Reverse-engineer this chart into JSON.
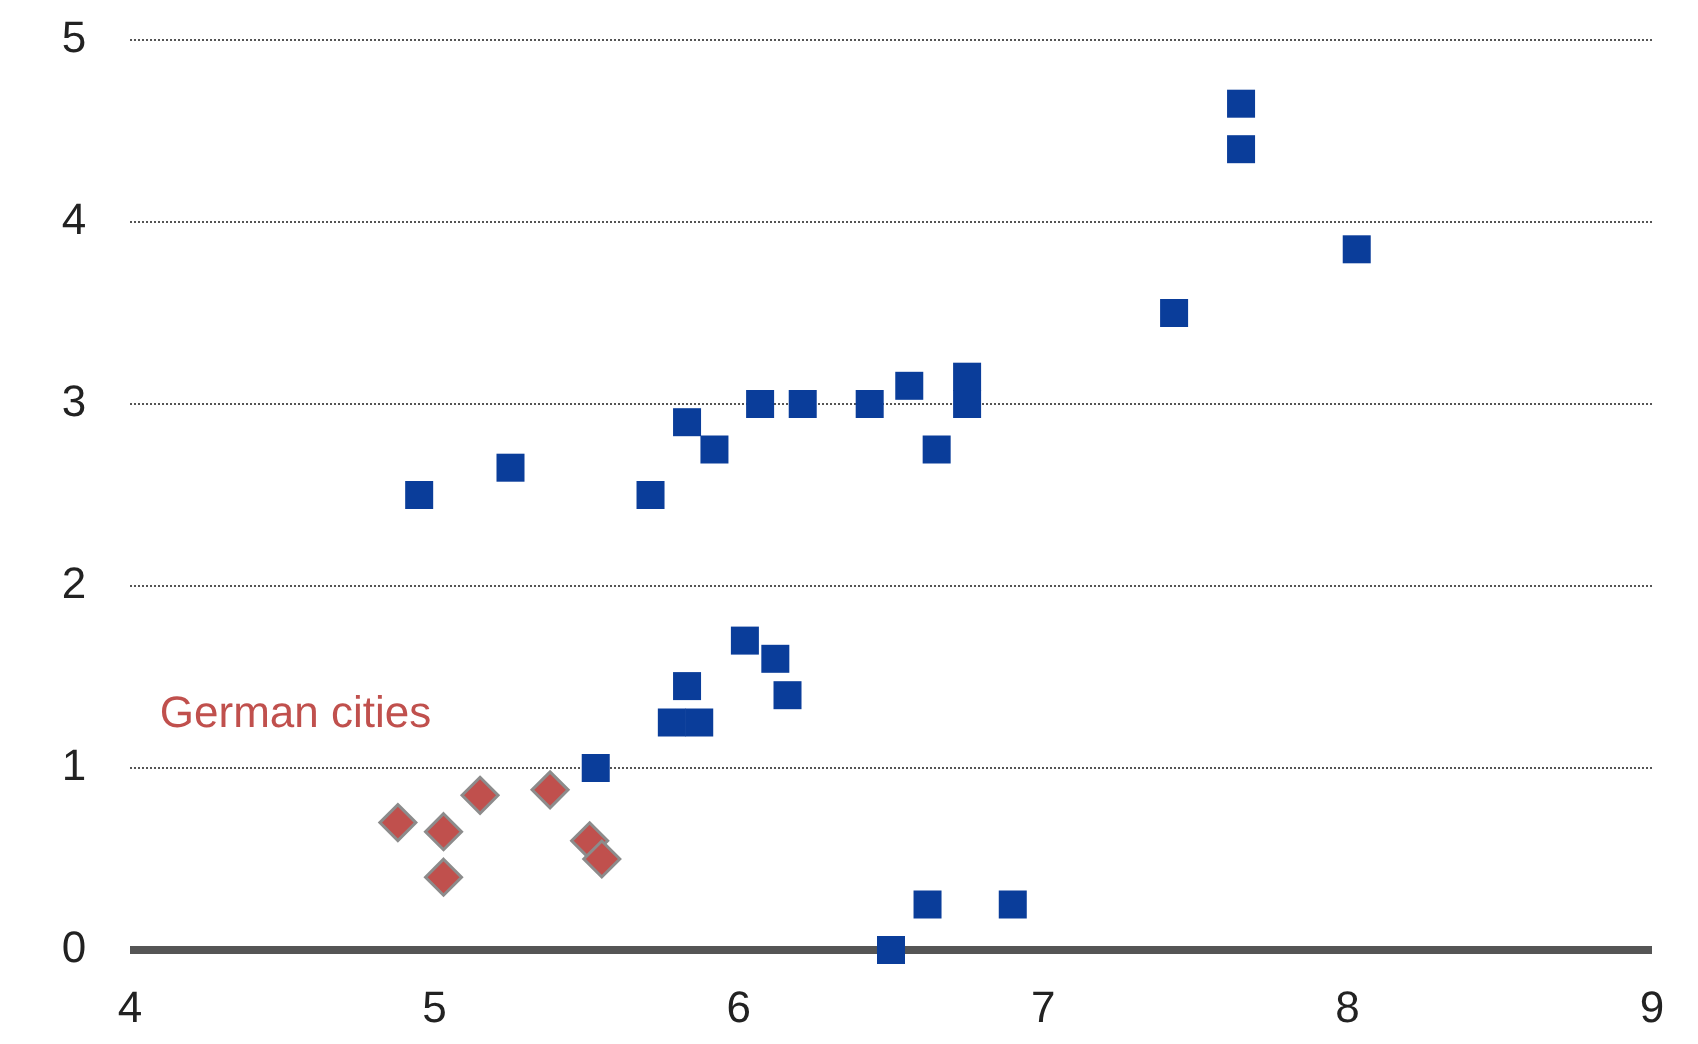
{
  "chart_data": {
    "type": "scatter",
    "xlim": [
      4,
      9
    ],
    "xticks": [
      4,
      5,
      6,
      7,
      8,
      9
    ],
    "ylim": [
      0,
      5
    ],
    "yticks": [
      0,
      1,
      2,
      3,
      4,
      5
    ],
    "grid": "y",
    "series": [
      {
        "color": "#0a3d9a",
        "marker": "square",
        "x": [
          4.95,
          5.25,
          5.71,
          5.83,
          5.92,
          6.07,
          6.21,
          6.43,
          6.56,
          6.75,
          6.75,
          6.65,
          7.43,
          7.65,
          7.65,
          8.03,
          5.53,
          5.83,
          5.78,
          5.87,
          6.02,
          6.12,
          6.16,
          6.5,
          6.62,
          6.9
        ],
        "values": [
          2.5,
          2.65,
          2.5,
          2.9,
          2.75,
          3.0,
          3.0,
          3.0,
          3.1,
          3.15,
          3.0,
          2.75,
          3.5,
          4.65,
          4.4,
          3.85,
          1.0,
          1.45,
          1.25,
          1.25,
          1.7,
          1.6,
          1.4,
          0,
          0.25,
          0.25
        ]
      },
      {
        "name": "German cities",
        "color": "#c0504d",
        "marker": "diamond",
        "x": [
          4.88,
          5.03,
          5.03,
          5.15,
          5.38,
          5.51,
          5.55
        ],
        "values": [
          0.7,
          0.65,
          0.4,
          0.85,
          0.88,
          0.6,
          0.5
        ]
      }
    ]
  }
}
